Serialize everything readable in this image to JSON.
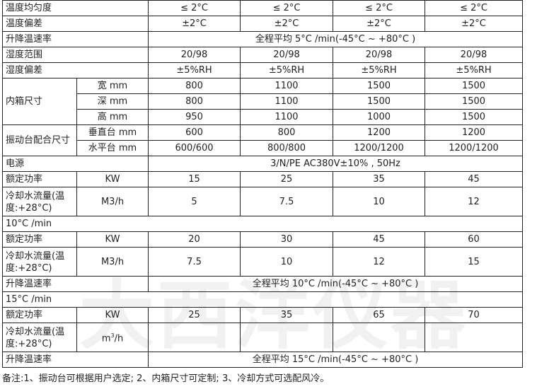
{
  "rows": {
    "r1": {
      "label": "温度均匀度",
      "v": [
        "≤ 2°C",
        "≤ 2°C",
        "≤ 2°C",
        "≤ 2°C"
      ]
    },
    "r2": {
      "label": "温度偏差",
      "v": [
        "±2°C",
        "±2°C",
        "±2°C",
        "±2°C"
      ]
    },
    "r3": {
      "label": "升降温速率",
      "span": "全程平均 5°C /min(-45°C ~ +80°C )"
    },
    "r4": {
      "label": "湿度范围",
      "v": [
        "20/98",
        "20/98",
        "20/98",
        "20/98"
      ]
    },
    "r5": {
      "label": "湿度偏差",
      "v": [
        "±5%RH",
        "±5%RH",
        "±5%RH",
        "±5%RH"
      ]
    },
    "inner": {
      "label": "内箱尺寸",
      "w": {
        "label": "宽 mm",
        "v": [
          "800",
          "1100",
          "1500",
          "1500"
        ]
      },
      "d": {
        "label": "深 mm",
        "v": [
          "800",
          "1100",
          "1500",
          "1500"
        ]
      },
      "h": {
        "label": "高 mm",
        "v": [
          "950",
          "1100",
          "1000",
          "1500"
        ]
      }
    },
    "vib": {
      "label": "振动台配合尺寸",
      "vert": {
        "label": "垂直台 mm",
        "v": [
          "600",
          "800",
          "1200",
          "1200"
        ]
      },
      "hor": {
        "label": "水平台 mm",
        "v": [
          "600/600",
          "800/800",
          "1200/1200",
          "1200/1200"
        ]
      }
    },
    "power": {
      "label": "电源",
      "span": "3/N/PE AC380V±10% , 50Hz"
    },
    "p5": {
      "label": "额定功率",
      "unit": "KW",
      "v": [
        "15",
        "25",
        "35",
        "45"
      ]
    },
    "c5": {
      "label": "冷却水流量(温度:+28°C)",
      "unit": "M3/h",
      "v": [
        "5",
        "7.5",
        "10",
        "12"
      ]
    },
    "s10": "10°C /min",
    "p10": {
      "label": "额定功率",
      "unit": "KW",
      "v": [
        "20",
        "30",
        "45",
        "60"
      ]
    },
    "c10": {
      "label": "冷却水流量(温度:+28°C)",
      "unit": "M3/h",
      "v": [
        "7.5",
        "10",
        "12",
        "15"
      ]
    },
    "r10": {
      "label": "升降温速率",
      "span": "全程平均 10°C /min(-45°C ~ +80°C )"
    },
    "s15": "15°C /min",
    "p15": {
      "label": "额定功率",
      "unit": "KW",
      "v": [
        "25",
        "35",
        "65",
        "70"
      ]
    },
    "c15": {
      "label": "冷却水流量(温度:+28°C)",
      "unit": "m",
      "unit_sup": "3",
      "unit_tail": "/h"
    },
    "r15": {
      "label": "升降温速率",
      "span": "全程平均 15°C /min(-45°C ~ +80°C )"
    }
  },
  "note": "备注:1、振动台可根据用户选定; 2、内箱尺寸可定制; 3、冷却方式可选配风冷。",
  "watermark": "大西洋仪器"
}
